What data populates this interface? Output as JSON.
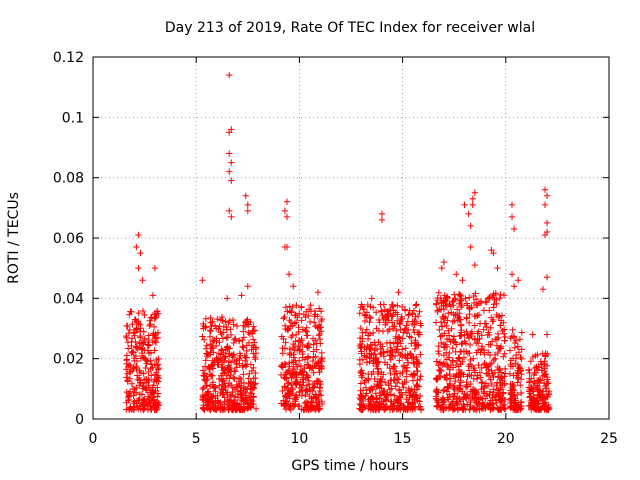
{
  "chart_data": {
    "type": "scatter",
    "title": "Day 213 of 2019, Rate Of TEC Index for receiver wlal",
    "xlabel": "GPS time / hours",
    "ylabel": "ROTI / TECUs",
    "xlim": [
      0,
      25
    ],
    "ylim": [
      0,
      0.12
    ],
    "xticks": [
      0,
      5,
      10,
      15,
      20,
      25
    ],
    "xtick_labels": [
      "0",
      "5",
      "10",
      "15",
      "20",
      "25"
    ],
    "yticks": [
      0,
      0.02,
      0.04,
      0.06,
      0.08,
      0.1,
      0.12
    ],
    "ytick_labels": [
      "0",
      "0.02",
      "0.04",
      "0.06",
      "0.08",
      "0.1",
      "0.12"
    ],
    "grid": true,
    "marker": "+",
    "marker_color": "#ff0000",
    "series": [
      {
        "name": "ROTI",
        "clusters": [
          {
            "x_range": [
              1.6,
              3.2
            ],
            "y_range": [
              0.003,
              0.036
            ]
          },
          {
            "x_range": [
              5.3,
              7.9
            ],
            "y_range": [
              0.003,
              0.034
            ]
          },
          {
            "x_range": [
              9.1,
              11.1
            ],
            "y_range": [
              0.003,
              0.038
            ]
          },
          {
            "x_range": [
              12.9,
              15.9
            ],
            "y_range": [
              0.003,
              0.038
            ]
          },
          {
            "x_range": [
              16.6,
              20.0
            ],
            "y_range": [
              0.003,
              0.042
            ]
          },
          {
            "x_range": [
              20.2,
              20.8
            ],
            "y_range": [
              0.003,
              0.03
            ]
          },
          {
            "x_range": [
              21.1,
              22.1
            ],
            "y_range": [
              0.003,
              0.022
            ]
          }
        ],
        "outliers": [
          [
            2.2,
            0.061
          ],
          [
            2.1,
            0.057
          ],
          [
            2.3,
            0.055
          ],
          [
            2.2,
            0.05
          ],
          [
            3.0,
            0.05
          ],
          [
            2.4,
            0.046
          ],
          [
            2.9,
            0.041
          ],
          [
            5.3,
            0.046
          ],
          [
            6.6,
            0.114
          ],
          [
            6.7,
            0.096
          ],
          [
            6.6,
            0.095
          ],
          [
            6.6,
            0.088
          ],
          [
            6.7,
            0.085
          ],
          [
            6.6,
            0.082
          ],
          [
            6.7,
            0.079
          ],
          [
            6.6,
            0.069
          ],
          [
            6.7,
            0.067
          ],
          [
            7.4,
            0.074
          ],
          [
            7.5,
            0.071
          ],
          [
            7.5,
            0.069
          ],
          [
            7.2,
            0.041
          ],
          [
            7.5,
            0.044
          ],
          [
            6.5,
            0.04
          ],
          [
            9.4,
            0.072
          ],
          [
            9.3,
            0.069
          ],
          [
            9.4,
            0.067
          ],
          [
            9.3,
            0.057
          ],
          [
            9.4,
            0.057
          ],
          [
            9.5,
            0.048
          ],
          [
            9.7,
            0.044
          ],
          [
            10.9,
            0.042
          ],
          [
            14.0,
            0.068
          ],
          [
            14.0,
            0.066
          ],
          [
            13.5,
            0.04
          ],
          [
            14.8,
            0.042
          ],
          [
            16.9,
            0.05
          ],
          [
            17.0,
            0.052
          ],
          [
            18.0,
            0.071
          ],
          [
            18.2,
            0.068
          ],
          [
            18.4,
            0.073
          ],
          [
            18.5,
            0.075
          ],
          [
            18.4,
            0.071
          ],
          [
            18.3,
            0.064
          ],
          [
            18.3,
            0.057
          ],
          [
            18.5,
            0.051
          ],
          [
            17.6,
            0.048
          ],
          [
            17.9,
            0.046
          ],
          [
            19.3,
            0.056
          ],
          [
            19.4,
            0.055
          ],
          [
            19.6,
            0.05
          ],
          [
            20.3,
            0.071
          ],
          [
            20.3,
            0.067
          ],
          [
            20.4,
            0.063
          ],
          [
            20.3,
            0.048
          ],
          [
            20.6,
            0.046
          ],
          [
            20.4,
            0.044
          ],
          [
            21.9,
            0.076
          ],
          [
            22.0,
            0.074
          ],
          [
            21.9,
            0.071
          ],
          [
            22.0,
            0.065
          ],
          [
            22.0,
            0.062
          ],
          [
            21.9,
            0.061
          ],
          [
            22.0,
            0.047
          ],
          [
            21.8,
            0.043
          ],
          [
            22.0,
            0.028
          ],
          [
            21.3,
            0.028
          ]
        ]
      }
    ]
  }
}
